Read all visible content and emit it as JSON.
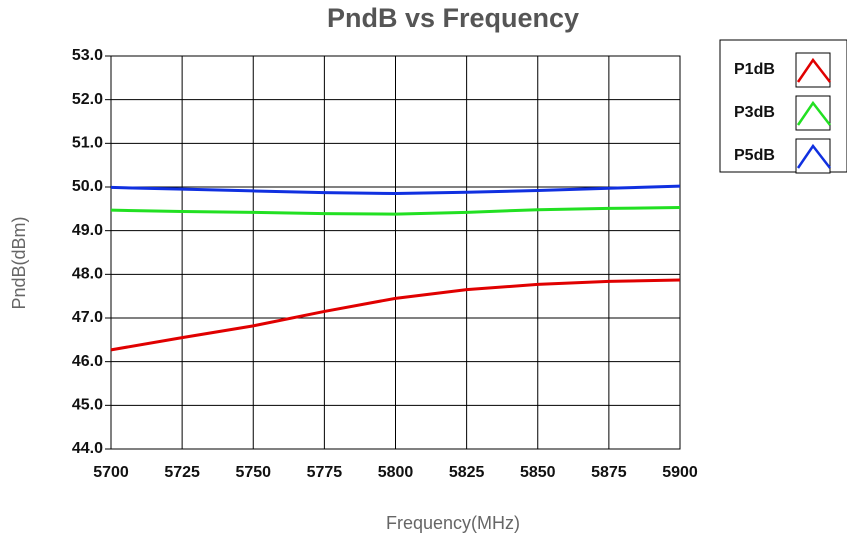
{
  "chart_data": {
    "type": "line",
    "title": "PndB vs Frequency",
    "xlabel": "Frequency(MHz)",
    "ylabel": "PndB(dBm)",
    "x": [
      5700,
      5725,
      5750,
      5775,
      5800,
      5825,
      5850,
      5875,
      5900
    ],
    "series": [
      {
        "name": "P1dB",
        "color": "#e00000",
        "values": [
          46.27,
          46.55,
          46.82,
          47.15,
          47.45,
          47.65,
          47.77,
          47.84,
          47.87
        ]
      },
      {
        "name": "P3dB",
        "color": "#22e022",
        "values": [
          49.47,
          49.44,
          49.42,
          49.39,
          49.38,
          49.42,
          49.48,
          49.51,
          49.53
        ]
      },
      {
        "name": "P5dB",
        "color": "#1030e0",
        "values": [
          49.99,
          49.95,
          49.91,
          49.87,
          49.85,
          49.88,
          49.92,
          49.97,
          50.02
        ]
      }
    ],
    "xlim": [
      5700,
      5900
    ],
    "xticks": [
      5700,
      5725,
      5750,
      5775,
      5800,
      5825,
      5850,
      5875,
      5900
    ],
    "ylim": [
      44,
      53
    ],
    "yticks": [
      {
        "value": 44,
        "label": "44.0"
      },
      {
        "value": 45,
        "label": "45.0"
      },
      {
        "value": 46,
        "label": "46.0"
      },
      {
        "value": 47,
        "label": "47.0"
      },
      {
        "value": 48,
        "label": "48.0"
      },
      {
        "value": 49,
        "label": "49.0"
      },
      {
        "value": 50,
        "label": "50.0"
      },
      {
        "value": 51,
        "label": "51.0"
      },
      {
        "value": 52,
        "label": "52.0"
      },
      {
        "value": 53,
        "label": "53.0"
      }
    ],
    "grid": true,
    "legend": "right"
  }
}
